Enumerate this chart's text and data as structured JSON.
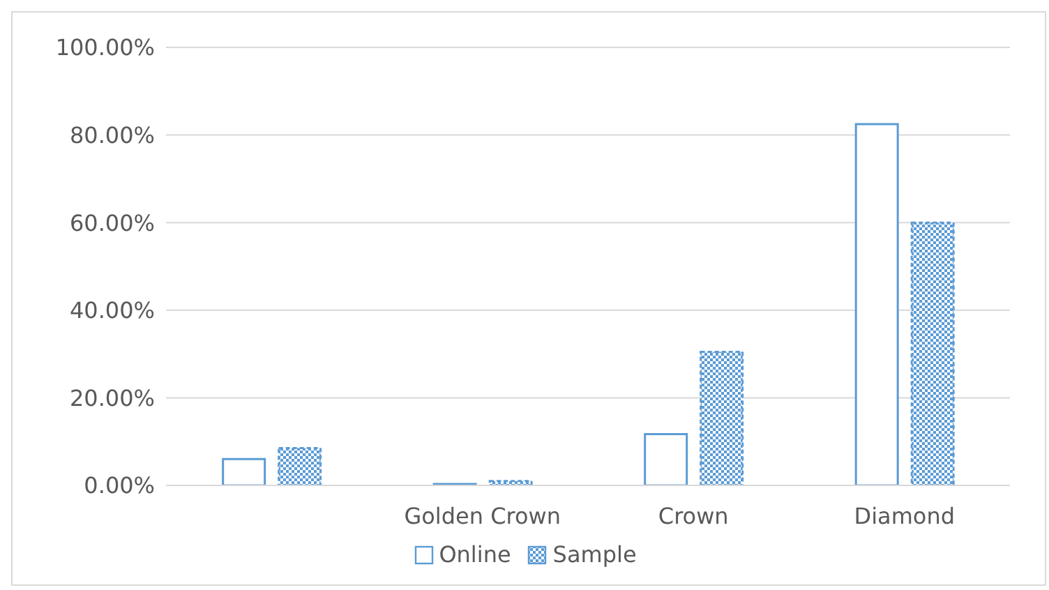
{
  "chart_data": {
    "type": "bar",
    "categories": [
      null,
      "Golden Crown",
      "Crown",
      "Diamond"
    ],
    "series": [
      {
        "name": "Online",
        "color": "#5b9bd5",
        "values": [
          6.0,
          0.3,
          11.7,
          82.5
        ]
      },
      {
        "name": "Sample",
        "color": "#5b9bd5",
        "values": [
          8.5,
          1.0,
          30.5,
          60.0
        ]
      }
    ],
    "ylim": [
      0,
      100
    ],
    "yticks": [
      {
        "value": 0,
        "label": "0.00%"
      },
      {
        "value": 20,
        "label": "20.00%"
      },
      {
        "value": 40,
        "label": "40.00%"
      },
      {
        "value": 60,
        "label": "60.00%"
      },
      {
        "value": 80,
        "label": "80.00%"
      },
      {
        "value": 100,
        "label": "100.00%"
      }
    ],
    "grid": "y",
    "legend": "bottom"
  }
}
